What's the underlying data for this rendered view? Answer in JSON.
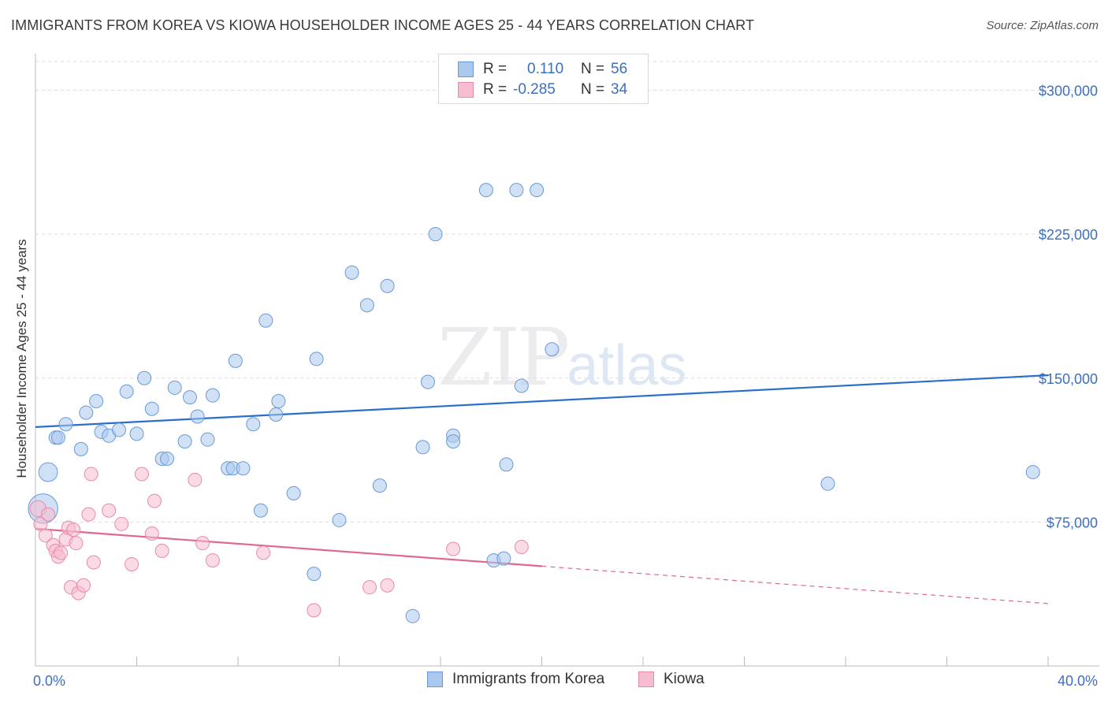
{
  "title": "IMMIGRANTS FROM KOREA VS KIOWA HOUSEHOLDER INCOME AGES 25 - 44 YEARS CORRELATION CHART",
  "source": "Source: ZipAtlas.com",
  "watermark": {
    "zip": "ZIP",
    "atlas": "atlas"
  },
  "legend": {
    "rows": [
      {
        "r_label": "R =",
        "r_value": "0.110",
        "n_label": "N =",
        "n_value": "56"
      },
      {
        "r_label": "R =",
        "r_value": "-0.285",
        "n_label": "N =",
        "n_value": "34"
      }
    ]
  },
  "bottom_legend": [
    "Immigrants from Korea",
    "Kiowa"
  ],
  "colors": {
    "korea_fill": "#aac8ee",
    "korea_stroke": "#6a9ad6",
    "korea_line": "#2a6fcc",
    "kiowa_fill": "#f6bcd0",
    "kiowa_stroke": "#e88aab",
    "kiowa_line": "#e0688f",
    "grid": "#dddddd",
    "axis_text": "#3d6fbf"
  },
  "chart_data": {
    "type": "scatter",
    "title": "IMMIGRANTS FROM KOREA VS KIOWA HOUSEHOLDER INCOME AGES 25 - 44 YEARS CORRELATION CHART",
    "xlabel": "",
    "ylabel": "Householder Income Ages 25 - 44 years",
    "xlim": [
      0,
      40
    ],
    "ylim": [
      0,
      315000
    ],
    "x_tick_labels": [
      "0.0%",
      "40.0%"
    ],
    "y_ticks": [
      75000,
      150000,
      225000,
      300000
    ],
    "y_tick_labels": [
      "$75,000",
      "$150,000",
      "$225,000",
      "$300,000"
    ],
    "series": [
      {
        "name": "Immigrants from Korea",
        "points": [
          [
            0.3,
            82000,
            22
          ],
          [
            0.5,
            101000,
            14
          ],
          [
            0.8,
            119000,
            10
          ],
          [
            0.9,
            119000,
            10
          ],
          [
            1.2,
            126000,
            10
          ],
          [
            1.8,
            113000,
            10
          ],
          [
            2.0,
            132000,
            10
          ],
          [
            2.4,
            138000,
            10
          ],
          [
            2.6,
            122000,
            10
          ],
          [
            2.9,
            120000,
            10
          ],
          [
            3.3,
            123000,
            10
          ],
          [
            3.6,
            143000,
            10
          ],
          [
            4.0,
            121000,
            10
          ],
          [
            4.3,
            150000,
            10
          ],
          [
            4.6,
            134000,
            10
          ],
          [
            5.0,
            108000,
            10
          ],
          [
            5.2,
            108000,
            10
          ],
          [
            5.5,
            145000,
            10
          ],
          [
            5.9,
            117000,
            10
          ],
          [
            6.1,
            140000,
            10
          ],
          [
            6.4,
            130000,
            10
          ],
          [
            6.8,
            118000,
            10
          ],
          [
            7.0,
            141000,
            10
          ],
          [
            7.6,
            103000,
            10
          ],
          [
            7.8,
            103000,
            10
          ],
          [
            7.9,
            159000,
            10
          ],
          [
            8.2,
            103000,
            10
          ],
          [
            8.6,
            126000,
            10
          ],
          [
            8.9,
            81000,
            10
          ],
          [
            9.1,
            180000,
            10
          ],
          [
            9.5,
            131000,
            10
          ],
          [
            9.6,
            138000,
            10
          ],
          [
            10.2,
            90000,
            10
          ],
          [
            11.1,
            160000,
            10
          ],
          [
            11.0,
            48000,
            10
          ],
          [
            12.0,
            76000,
            10
          ],
          [
            12.5,
            205000,
            10
          ],
          [
            13.1,
            188000,
            10
          ],
          [
            13.6,
            94000,
            10
          ],
          [
            13.9,
            198000,
            10
          ],
          [
            14.9,
            26000,
            10
          ],
          [
            15.3,
            114000,
            10
          ],
          [
            15.5,
            148000,
            10
          ],
          [
            15.8,
            225000,
            10
          ],
          [
            16.5,
            120000,
            10
          ],
          [
            16.5,
            117000,
            10
          ],
          [
            17.8,
            248000,
            10
          ],
          [
            18.1,
            55000,
            10
          ],
          [
            18.5,
            56000,
            10
          ],
          [
            18.6,
            105000,
            10
          ],
          [
            19.0,
            248000,
            10
          ],
          [
            19.2,
            146000,
            10
          ],
          [
            19.8,
            248000,
            10
          ],
          [
            20.4,
            165000,
            10
          ],
          [
            31.3,
            95000,
            10
          ],
          [
            39.4,
            101000,
            10
          ]
        ],
        "trend": {
          "x": [
            0,
            40
          ],
          "y": [
            124500,
            151500
          ]
        }
      },
      {
        "name": "Kiowa",
        "points": [
          [
            0.1,
            82000,
            12
          ],
          [
            0.2,
            74000,
            10
          ],
          [
            0.4,
            68000,
            10
          ],
          [
            0.5,
            79000,
            10
          ],
          [
            0.7,
            63000,
            10
          ],
          [
            0.8,
            60000,
            10
          ],
          [
            0.9,
            57000,
            10
          ],
          [
            1.0,
            59000,
            10
          ],
          [
            1.2,
            66000,
            10
          ],
          [
            1.3,
            72000,
            10
          ],
          [
            1.4,
            41000,
            10
          ],
          [
            1.5,
            71000,
            10
          ],
          [
            1.6,
            64000,
            10
          ],
          [
            1.7,
            38000,
            10
          ],
          [
            1.9,
            42000,
            10
          ],
          [
            2.1,
            79000,
            10
          ],
          [
            2.2,
            100000,
            10
          ],
          [
            2.3,
            54000,
            10
          ],
          [
            2.9,
            81000,
            10
          ],
          [
            3.4,
            74000,
            10
          ],
          [
            3.8,
            53000,
            10
          ],
          [
            4.2,
            100000,
            10
          ],
          [
            4.6,
            69000,
            10
          ],
          [
            4.7,
            86000,
            10
          ],
          [
            5.0,
            60000,
            10
          ],
          [
            6.3,
            97000,
            10
          ],
          [
            6.6,
            64000,
            10
          ],
          [
            7.0,
            55000,
            10
          ],
          [
            9.0,
            59000,
            10
          ],
          [
            11.0,
            29000,
            10
          ],
          [
            13.2,
            41000,
            10
          ],
          [
            13.9,
            42000,
            10
          ],
          [
            16.5,
            61000,
            10
          ],
          [
            19.2,
            62000,
            10
          ]
        ],
        "trend": {
          "x": [
            0,
            20
          ],
          "y": [
            71500,
            52000
          ]
        },
        "trend_extension": {
          "x": [
            20,
            40
          ],
          "y": [
            52000,
            32500
          ]
        }
      }
    ]
  }
}
